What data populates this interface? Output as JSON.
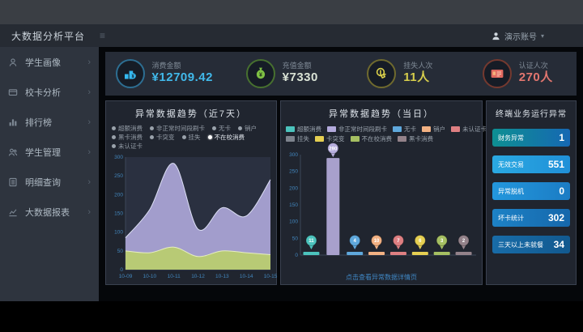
{
  "app": {
    "title": "大数据分析平台",
    "menu_toggle": "≡",
    "user": {
      "name": "演示账号",
      "caret": "▾"
    }
  },
  "sidebar": {
    "items": [
      {
        "label": "学生画像"
      },
      {
        "label": "校卡分析"
      },
      {
        "label": "排行榜"
      },
      {
        "label": "学生管理"
      },
      {
        "label": "明细查询"
      },
      {
        "label": "大数据报表"
      }
    ]
  },
  "kpis": [
    {
      "label": "消费金额",
      "value": "¥12709.42",
      "color": "#41b9ea",
      "icon": "coins"
    },
    {
      "label": "充值金额",
      "value": "¥7330",
      "color": "#d9e2d5",
      "icon": "money-bag"
    },
    {
      "label": "挂失人次",
      "value": "11人",
      "color": "#d6cd4c",
      "icon": "touch-hand"
    },
    {
      "label": "认证人次",
      "value": "270人",
      "color": "#e2766f",
      "icon": "id-card"
    }
  ],
  "panels": {
    "trend7": {
      "title": "异常数据趋势（近7天）",
      "legend": [
        {
          "label": "超额消费",
          "selected": false
        },
        {
          "label": "非正常时间段刷卡",
          "selected": false
        },
        {
          "label": "无卡",
          "selected": false
        },
        {
          "label": "销户",
          "selected": false
        },
        {
          "label": "黑卡消费",
          "selected": false
        },
        {
          "label": "卡突变",
          "selected": false
        },
        {
          "label": "挂失",
          "selected": false
        },
        {
          "label": "不在校消费",
          "selected": true
        },
        {
          "label": "未认证卡",
          "selected": false
        }
      ]
    },
    "today": {
      "title": "异常数据趋势（当日）",
      "legend": [
        {
          "label": "超额消费",
          "color": "#4cc3bd"
        },
        {
          "label": "非正常时间段刷卡",
          "color": "#b3aadc"
        },
        {
          "label": "无卡",
          "color": "#5fa8dc"
        },
        {
          "label": "销户",
          "color": "#f2b183"
        },
        {
          "label": "未认证卡",
          "color": "#de7f82"
        },
        {
          "label": "挂失",
          "color": "#7d838d"
        },
        {
          "label": "卡突变",
          "color": "#e5cf52"
        },
        {
          "label": "不在校消费",
          "color": "#a5bf62"
        },
        {
          "label": "黑卡消费",
          "color": "#93828a"
        }
      ],
      "footer_link": "点击查看异常数据详情页"
    },
    "terminal": {
      "title": "终端业务运行异常",
      "rows": [
        {
          "label": "财务异常",
          "value": "1"
        },
        {
          "label": "无效交易",
          "value": "551"
        },
        {
          "label": "异常脱机",
          "value": "0"
        },
        {
          "label": "坏卡统计",
          "value": "302"
        },
        {
          "label": "三天以上未就餐",
          "value": "34"
        }
      ]
    }
  },
  "chart_data": [
    {
      "type": "area",
      "title": "异常数据趋势（近7天）",
      "x": [
        "10-09",
        "10-10",
        "10-11",
        "10-12",
        "10-13",
        "10-14",
        "10-15"
      ],
      "ylim": [
        0,
        300
      ],
      "yticks": [
        0,
        50,
        100,
        150,
        200,
        250,
        300
      ],
      "grid": false,
      "legend_position": "top",
      "series": [
        {
          "name": "非正常时间段刷卡",
          "color": "#a9a3d4",
          "line": "#dcdff4",
          "values": [
            85,
            160,
            283,
            108,
            165,
            143,
            240
          ]
        },
        {
          "name": "不在校消费",
          "color": "#b9cc70",
          "line": "#e6eec0",
          "values": [
            50,
            45,
            60,
            35,
            50,
            45,
            40
          ]
        }
      ]
    },
    {
      "type": "bar",
      "title": "异常数据趋势（当日）",
      "categories": [
        "超额消费",
        "非正常时间段刷卡",
        "无卡",
        "销户",
        "未认证卡",
        "卡突变",
        "不在校消费",
        "黑卡消费"
      ],
      "values": [
        11,
        290,
        4,
        10,
        7,
        6,
        3,
        2
      ],
      "colors": [
        "#4cc3bd",
        "#b7aede",
        "#5fa8dc",
        "#f2b183",
        "#de7f82",
        "#e5cf52",
        "#a5bf62",
        "#93828a"
      ],
      "ylim": [
        0,
        300
      ],
      "yticks": [
        0,
        50,
        100,
        150,
        200,
        250,
        300
      ],
      "grid": false,
      "legend_position": "top"
    }
  ]
}
